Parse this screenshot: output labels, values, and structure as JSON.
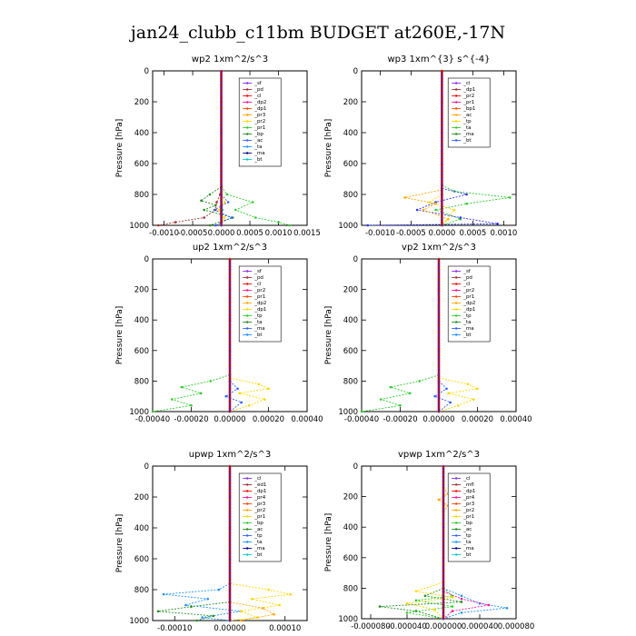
{
  "figure_title": "jan24_clubb_c11bm  BUDGET at260E,-17N",
  "chart_data": [
    {
      "type": "line",
      "title": "wp2   1xm^2/s^3",
      "ylabel": "Pressure [hPa]",
      "ylim": [
        1000,
        0
      ],
      "xlim": [
        -0.0012,
        0.0015
      ],
      "xticks": [
        "-0.0010",
        "-0.0005",
        "0.0000",
        "0.0005",
        "0.0010",
        "0.0015"
      ],
      "xtick_values": [
        -0.001,
        -0.0005,
        0,
        0.0005,
        0.001,
        0.0015
      ],
      "yticks": [
        0,
        200,
        400,
        600,
        800,
        1000
      ],
      "legend": [
        "_sf",
        "_pd",
        "_cl",
        "_dp2",
        "_dp1",
        "_pr3",
        "_pr2",
        "_pr1",
        "_bp",
        "_ac",
        "_ta",
        "_ma",
        "_bt"
      ],
      "series": [
        {
          "name": "_pd",
          "color": "#a03030",
          "y": [
            760,
            800,
            850,
            900,
            950,
            980,
            1000
          ],
          "x": [
            0,
            -2e-05,
            -8e-05,
            -0.0001,
            -0.0003,
            -0.0008,
            -0.0011
          ]
        },
        {
          "name": "_dp1",
          "color": "#2ecc2e",
          "y": [
            750,
            800,
            850,
            900,
            950,
            980,
            1000
          ],
          "x": [
            0,
            0.0001,
            0.00055,
            0.00025,
            0.0006,
            0.001,
            0.0012
          ]
        },
        {
          "name": "_pr1",
          "color": "#228b22",
          "y": [
            750,
            800,
            840,
            870,
            900,
            950,
            1000
          ],
          "x": [
            0,
            -0.0002,
            -0.00035,
            -0.0001,
            -0.0003,
            0.0002,
            -0.0002
          ]
        },
        {
          "name": "_bp",
          "color": "#3060ff",
          "y": [
            800,
            850,
            900,
            950,
            1000
          ],
          "x": [
            0,
            0.00012,
            -0.00012,
            0.00018,
            -0.0001
          ]
        },
        {
          "name": "_pr2",
          "color": "#ffd700",
          "y": [
            800,
            850,
            900,
            950,
            1000
          ],
          "x": [
            0,
            6e-05,
            -4e-05,
            5e-05,
            0
          ]
        },
        {
          "name": "_bt",
          "color": "#00ced1",
          "y": [
            800,
            900,
            1000
          ],
          "x": [
            0,
            2e-05,
            0
          ]
        },
        {
          "name": "_sf",
          "color": "#8a2be2",
          "y": [
            0,
            200,
            400,
            600,
            800,
            1000
          ],
          "x": [
            0,
            0,
            0,
            0,
            0,
            0
          ]
        }
      ]
    },
    {
      "type": "line",
      "title": "wp3   1xm^{3} s^{-4}",
      "ylabel": "Pressure [hPa]",
      "ylim": [
        1000,
        0
      ],
      "xlim": [
        -0.0013,
        0.0012
      ],
      "xticks": [
        "-0.0010",
        "-0.0005",
        "0.0000",
        "0.0005",
        "0.0010"
      ],
      "xtick_values": [
        -0.001,
        -0.0005,
        0,
        0.0005,
        0.001
      ],
      "yticks": [
        0,
        200,
        400,
        600,
        800,
        1000
      ],
      "legend": [
        "_cl",
        "_dp1",
        "_pr2",
        "_pr1",
        "_bp1",
        "_ac",
        "_tp",
        "_ta",
        "_ma",
        "_bt"
      ],
      "series": [
        {
          "name": "_dp1",
          "color": "#2ecc2e",
          "y": [
            740,
            780,
            820,
            860,
            900,
            960,
            1000
          ],
          "x": [
            0,
            0.0002,
            0.0011,
            0.0004,
            -0.0001,
            0.0003,
            0
          ]
        },
        {
          "name": "_tp",
          "color": "#3030ff",
          "y": [
            760,
            800,
            850,
            900,
            950,
            990,
            1000
          ],
          "x": [
            0,
            0.0004,
            -0.0001,
            -0.0004,
            0.0003,
            0.0009,
            -0.0012
          ]
        },
        {
          "name": "_pr1",
          "color": "#ffa500",
          "y": [
            770,
            820,
            860,
            900,
            960,
            1000
          ],
          "x": [
            0,
            -0.0006,
            -0.0001,
            -0.0003,
            0.0001,
            0
          ]
        },
        {
          "name": "_pr2",
          "color": "#ffd700",
          "y": [
            800,
            850,
            900,
            1000
          ],
          "x": [
            0,
            -0.0002,
            0.0002,
            0
          ]
        },
        {
          "name": "_cl",
          "color": "#ff0000",
          "y": [
            0,
            200,
            400,
            600,
            800,
            1000
          ],
          "x": [
            0,
            0,
            0,
            0,
            0,
            0
          ]
        }
      ]
    },
    {
      "type": "line",
      "title": "up2   1xm^2/s^3",
      "ylabel": "Pressure [hPa]",
      "ylim": [
        1000,
        0
      ],
      "xlim": [
        -0.0004,
        0.0004
      ],
      "xticks": [
        "-0.00040",
        "-0.00020",
        "0.00000",
        "0.00020",
        "0.00040"
      ],
      "xtick_values": [
        -0.0004,
        -0.0002,
        0,
        0.0002,
        0.0004
      ],
      "yticks": [
        0,
        200,
        400,
        600,
        800,
        1000
      ],
      "legend": [
        "_sf",
        "_pd",
        "_cl",
        "_pr2",
        "_pr1",
        "_dp2",
        "_dp1",
        "_tp",
        "_ta",
        "_ma",
        "_bt"
      ],
      "series": [
        {
          "name": "_dp1",
          "color": "#2ecc2e",
          "y": [
            760,
            800,
            840,
            880,
            920,
            960,
            1000
          ],
          "x": [
            0,
            -0.0001,
            -0.00025,
            -0.00015,
            -0.0003,
            -0.0002,
            -0.0004
          ]
        },
        {
          "name": "_pr1",
          "color": "#ffd700",
          "y": [
            780,
            820,
            850,
            880,
            920,
            960,
            1000
          ],
          "x": [
            0,
            0.00015,
            0.0002,
            5e-05,
            0.00018,
            0.0001,
            0
          ]
        },
        {
          "name": "_tp",
          "color": "#3060ff",
          "y": [
            800,
            850,
            900,
            940,
            1000
          ],
          "x": [
            0,
            4e-05,
            -2e-05,
            6e-05,
            0
          ]
        },
        {
          "name": "_pd",
          "color": "#a03030",
          "y": [
            0,
            200,
            400,
            600,
            800,
            1000
          ],
          "x": [
            0,
            0,
            0,
            0,
            0,
            0
          ]
        }
      ]
    },
    {
      "type": "line",
      "title": "vp2   1xm^2/s^3",
      "ylabel": "Pressure [hPa]",
      "ylim": [
        1000,
        0
      ],
      "xlim": [
        -0.0004,
        0.0004
      ],
      "xticks": [
        "-0.00040",
        "-0.00020",
        "0.00000",
        "0.00020",
        "0.00040"
      ],
      "xtick_values": [
        -0.0004,
        -0.0002,
        0,
        0.0002,
        0.0004
      ],
      "yticks": [
        0,
        200,
        400,
        600,
        800,
        1000
      ],
      "legend": [
        "_sf",
        "_pd",
        "_cl",
        "_pr2",
        "_pr1",
        "_dp2",
        "_dp1",
        "_tp",
        "_ta",
        "_ma",
        "_bt"
      ],
      "series": [
        {
          "name": "_dp1",
          "color": "#2ecc2e",
          "y": [
            760,
            800,
            840,
            880,
            920,
            960,
            1000
          ],
          "x": [
            0,
            -0.0001,
            -0.00025,
            -0.00015,
            -0.0003,
            -0.0002,
            -0.0004
          ]
        },
        {
          "name": "_pr1",
          "color": "#ffd700",
          "y": [
            780,
            820,
            850,
            880,
            920,
            960,
            1000
          ],
          "x": [
            0,
            0.00015,
            0.0002,
            5e-05,
            0.00018,
            0.0001,
            0
          ]
        },
        {
          "name": "_tp",
          "color": "#3060ff",
          "y": [
            800,
            850,
            900,
            940,
            1000
          ],
          "x": [
            0,
            4e-05,
            -2e-05,
            6e-05,
            0
          ]
        },
        {
          "name": "_pd",
          "color": "#a03030",
          "y": [
            0,
            200,
            400,
            600,
            800,
            1000
          ],
          "x": [
            0,
            0,
            0,
            0,
            0,
            0
          ]
        }
      ]
    },
    {
      "type": "line",
      "title": "upwp   1xm^2/s^3",
      "ylabel": "Pressure [hPa]",
      "ylim": [
        1000,
        0
      ],
      "xlim": [
        -0.00014,
        0.00014
      ],
      "xticks": [
        "-0.00010",
        "0.00000",
        "0.00010"
      ],
      "xtick_values": [
        -0.0001,
        0,
        0.0001
      ],
      "yticks": [
        0,
        200,
        400,
        600,
        800,
        1000
      ],
      "legend": [
        "_cl",
        "_ed1",
        "_dp1",
        "_pr4",
        "_pr3",
        "_pr2",
        "_pr1",
        "_bp",
        "_ac",
        "_tp",
        "_ta",
        "_ma",
        "_bt"
      ],
      "series": [
        {
          "name": "_tp",
          "color": "#1e90ff",
          "y": [
            760,
            800,
            830,
            860,
            900,
            940,
            980,
            1000
          ],
          "x": [
            0,
            -2e-05,
            -0.00012,
            -4e-05,
            -8e-05,
            2e-05,
            -5e-05,
            0
          ]
        },
        {
          "name": "_pr1",
          "color": "#ffd700",
          "y": [
            760,
            800,
            830,
            860,
            900,
            940,
            980,
            1000
          ],
          "x": [
            0,
            7e-05,
            0.00011,
            4e-05,
            9e-05,
            2e-05,
            5e-05,
            0
          ]
        },
        {
          "name": "_bp",
          "color": "#228b22",
          "y": [
            880,
            910,
            940,
            970,
            1000
          ],
          "x": [
            0,
            -7e-05,
            -0.00013,
            -3e-05,
            -6e-05
          ]
        },
        {
          "name": "_pr2",
          "color": "#ffa500",
          "y": [
            880,
            920,
            960,
            1000
          ],
          "x": [
            0,
            6e-05,
            8e-05,
            2e-05
          ]
        },
        {
          "name": "_ed1",
          "color": "#a03030",
          "y": [
            0,
            200,
            400,
            600,
            800,
            1000
          ],
          "x": [
            0,
            0,
            0,
            0,
            0,
            0
          ]
        }
      ]
    },
    {
      "type": "line",
      "title": "vpwp   1xm^2/s^3",
      "ylabel": "Pressure [hPa]",
      "ylim": [
        1000,
        0
      ],
      "xlim": [
        -9e-05,
        8e-05
      ],
      "xticks": [
        "-0.000080",
        "-0.000040",
        "0.000000",
        "0.000040",
        "0.000080"
      ],
      "xtick_values": [
        -8e-05,
        -4e-05,
        0,
        4e-05,
        8e-05
      ],
      "yticks": [
        0,
        200,
        400,
        600,
        800,
        1000
      ],
      "legend": [
        "_cl",
        "_mfl",
        "_dp1",
        "_pr4",
        "_pr3",
        "_pr2",
        "_pr1",
        "_bp",
        "_ac",
        "_tp",
        "_ta",
        "_ma",
        "_bt"
      ],
      "series": [
        {
          "name": "_bp",
          "color": "#228b22",
          "y": [
            800,
            850,
            890,
            920,
            950,
            1000
          ],
          "x": [
            0,
            -2e-05,
            2e-05,
            -7e-05,
            -3e-05,
            0
          ]
        },
        {
          "name": "_ac",
          "color": "#2ecc2e",
          "y": [
            800,
            850,
            880,
            920,
            960,
            1000
          ],
          "x": [
            0,
            1e-05,
            -3e-05,
            1e-05,
            -4e-05,
            0
          ]
        },
        {
          "name": "_tp",
          "color": "#1e90ff",
          "y": [
            800,
            850,
            900,
            930,
            960,
            1000
          ],
          "x": [
            0,
            2e-05,
            4e-05,
            7e-05,
            2e-05,
            0
          ]
        },
        {
          "name": "_dp1",
          "color": "#ff1493",
          "y": [
            820,
            870,
            910,
            950,
            1000
          ],
          "x": [
            0,
            2e-05,
            5e-05,
            1e-05,
            0
          ]
        },
        {
          "name": "_pr1",
          "color": "#ffd700",
          "y": [
            760,
            820,
            860,
            900,
            940,
            1000
          ],
          "x": [
            0,
            -3e-05,
            1e-05,
            -4e-05,
            -1e-05,
            0
          ]
        },
        {
          "name": "_pr2",
          "color": "#ffa500",
          "y": [
            140,
            180,
            220,
            260,
            300
          ],
          "x": [
            0,
            5e-06,
            -5e-06,
            5e-06,
            0
          ]
        },
        {
          "name": "_cl",
          "color": "#8a2be2",
          "y": [
            0,
            200,
            400,
            600,
            800,
            1000
          ],
          "x": [
            0,
            0,
            0,
            0,
            0,
            0
          ]
        }
      ]
    }
  ]
}
